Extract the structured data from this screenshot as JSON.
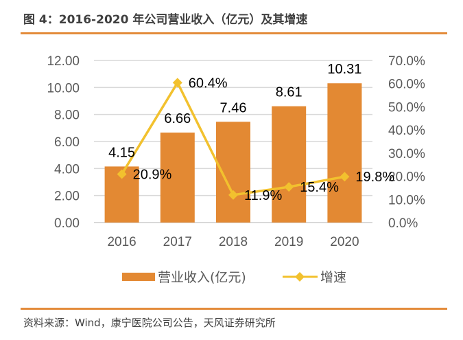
{
  "header": {
    "title": "图 4：2016-2020 年公司营业收入（亿元）及其增速"
  },
  "footer": {
    "source": "资料来源：Wind，康宁医院公司公告，天风证券研究所"
  },
  "colors": {
    "bar": "#e38933",
    "line": "#f2c12e",
    "rule": "#e38b3a",
    "grid": "#d9d9d9"
  },
  "chart_data": {
    "type": "bar",
    "title": "2016-2020 年公司营业收入（亿元）及其增速",
    "categories": [
      "2016",
      "2017",
      "2018",
      "2019",
      "2020"
    ],
    "series": [
      {
        "name": "营业收入(亿元)",
        "type": "bar",
        "axis": "left",
        "values": [
          4.15,
          6.66,
          7.46,
          8.61,
          10.31
        ],
        "labels": [
          "4.15",
          "6.66",
          "7.46",
          "8.61",
          "10.31"
        ]
      },
      {
        "name": "增速",
        "type": "line",
        "axis": "right",
        "marker": "diamond",
        "values": [
          20.9,
          60.4,
          11.9,
          15.4,
          19.8
        ],
        "labels": [
          "20.9%",
          "60.4%",
          "11.9%",
          "15.4%",
          "19.8%"
        ]
      }
    ],
    "y_left": {
      "min": 0,
      "max": 12,
      "step": 2,
      "tick_labels": [
        "0.00",
        "2.00",
        "4.00",
        "6.00",
        "8.00",
        "10.00",
        "12.00"
      ]
    },
    "y_right": {
      "min": 0,
      "max": 70,
      "step": 10,
      "tick_labels": [
        "0.0%",
        "10.0%",
        "20.0%",
        "30.0%",
        "40.0%",
        "50.0%",
        "60.0%",
        "70.0%"
      ]
    },
    "grid": true,
    "legend": "bottom"
  }
}
